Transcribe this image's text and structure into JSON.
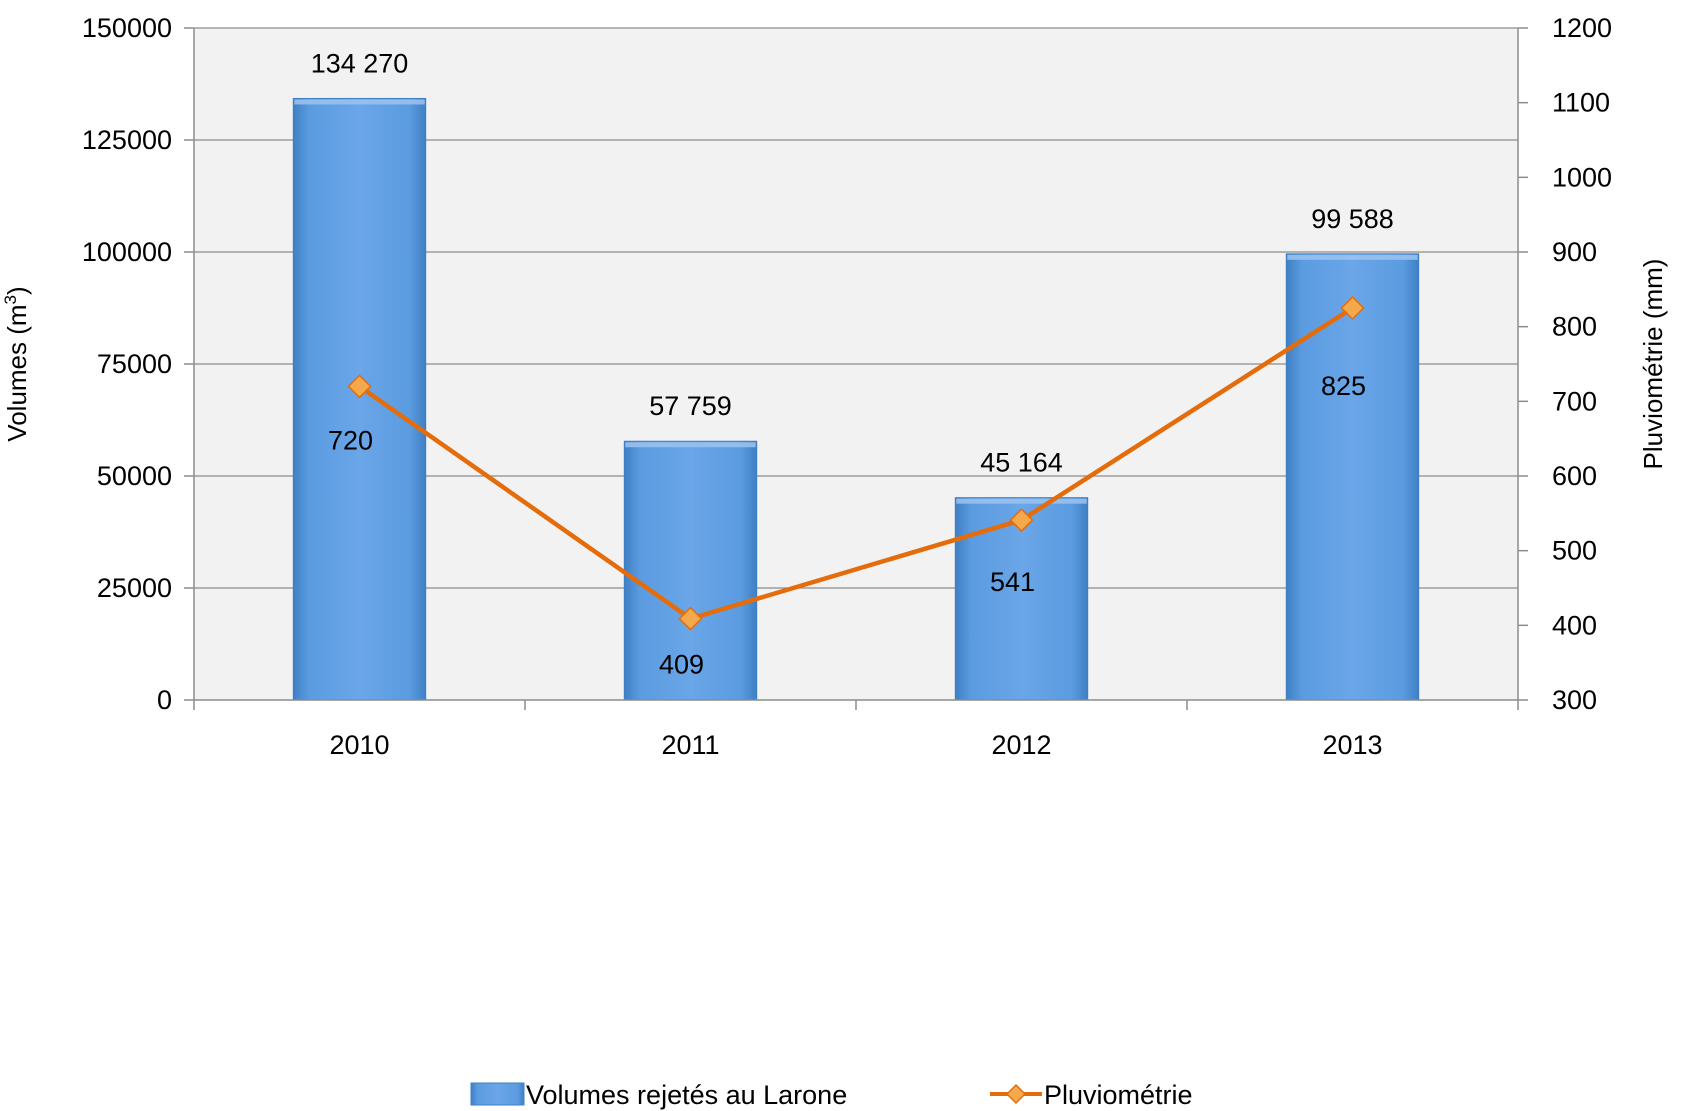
{
  "chart_data": {
    "type": "bar",
    "categories": [
      "2010",
      "2011",
      "2012",
      "2013"
    ],
    "series": [
      {
        "name": "Volumes rejetés au Larone",
        "kind": "bar",
        "axis": "left",
        "values": [
          134270,
          57759,
          45164,
          99588
        ],
        "labels": [
          "134 270",
          "57 759",
          "45 164",
          "99 588"
        ],
        "color": "#5B9BD5"
      },
      {
        "name": "Pluviométrie",
        "kind": "line",
        "axis": "right",
        "values": [
          720,
          409,
          541,
          825
        ],
        "labels": [
          "720",
          "409",
          "541",
          "825"
        ],
        "color": "#E46C0A",
        "marker": "diamond",
        "marker_color": "#F5A94C"
      }
    ],
    "y_left": {
      "label_prefix": "Volumes (m",
      "label_sup": "3",
      "label_suffix": ")",
      "ylim": [
        0,
        150000
      ],
      "ticks": [
        0,
        25000,
        50000,
        75000,
        100000,
        125000,
        150000
      ],
      "tick_labels": [
        "0",
        "25000",
        "50000",
        "75000",
        "100000",
        "125000",
        "150000"
      ]
    },
    "y_right": {
      "label": "Pluviométrie (mm)",
      "ylim": [
        300,
        1200
      ],
      "ticks": [
        300,
        400,
        500,
        600,
        700,
        800,
        900,
        1000,
        1100,
        1200
      ],
      "tick_labels": [
        "300",
        "400",
        "500",
        "600",
        "700",
        "800",
        "900",
        "1000",
        "1100",
        "1200"
      ]
    },
    "grid": true,
    "plot_background": "#F2F2F2",
    "legend": "bottom"
  }
}
